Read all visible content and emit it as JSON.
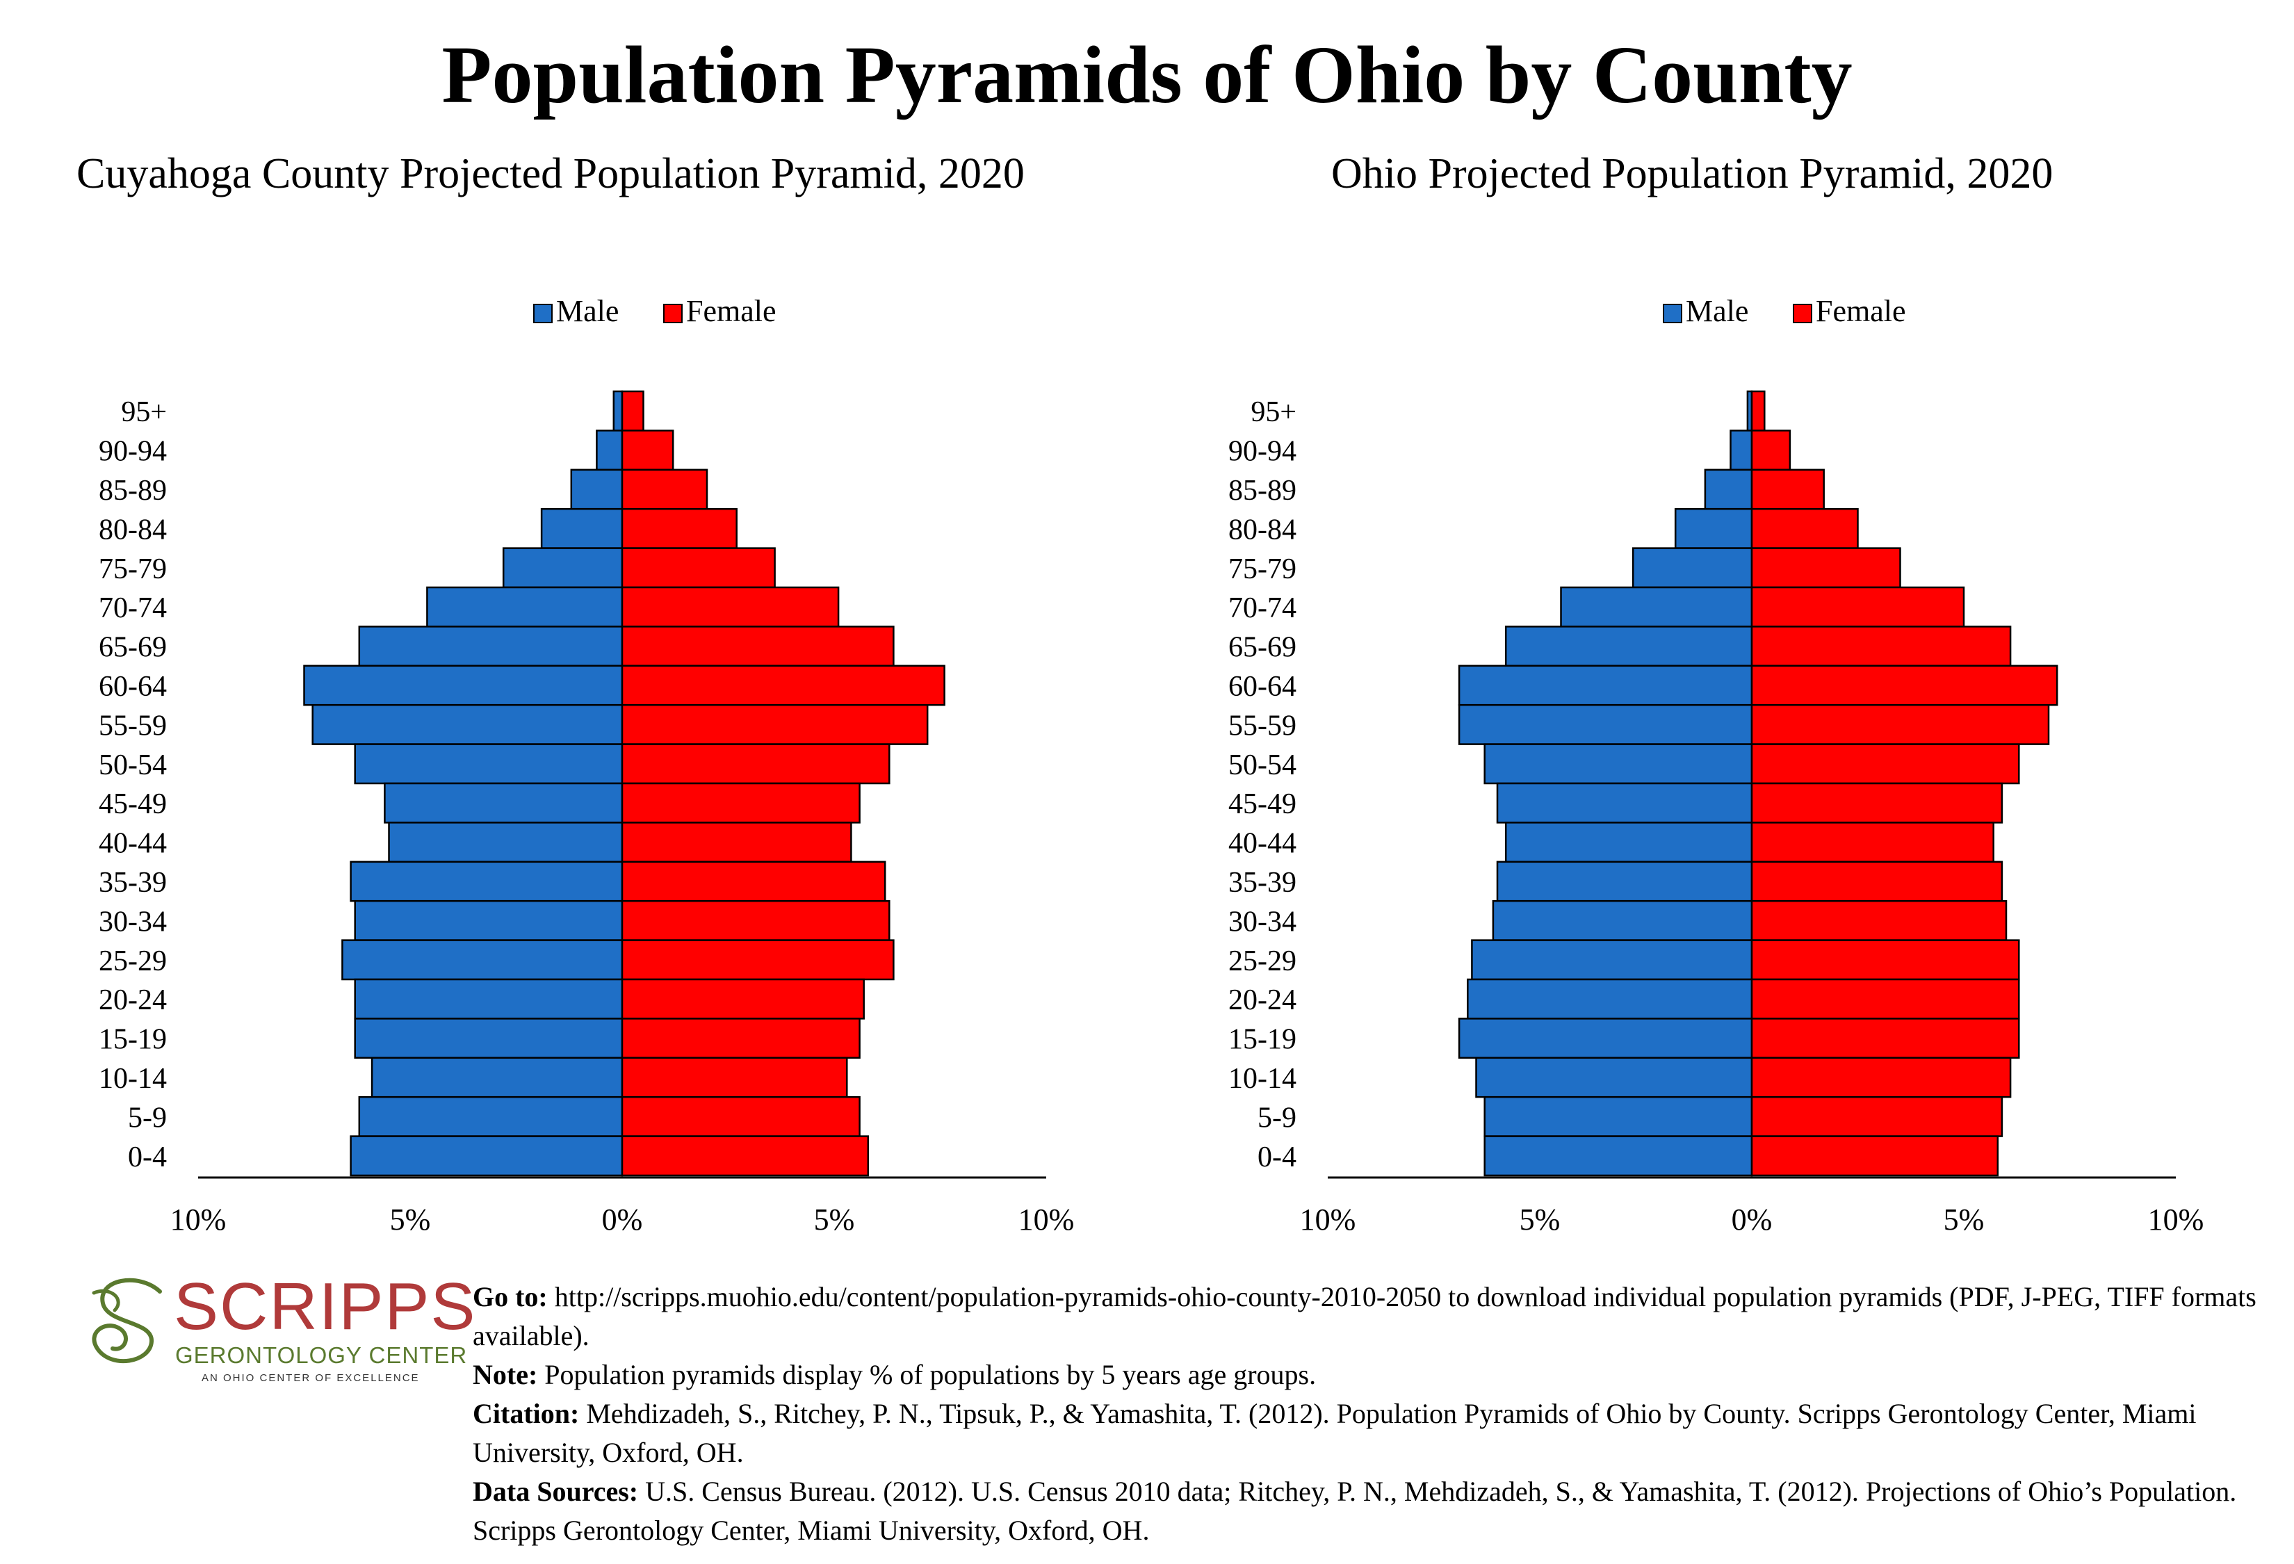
{
  "title": "Population Pyramids of Ohio by County",
  "colors": {
    "male": "#1f6fc6",
    "female": "#ff0000"
  },
  "chart_data": [
    {
      "type": "bar",
      "orientation": "horizontal-pyramid",
      "title": "Cuyahoga County Projected Population Pyramid, 2020",
      "categories": [
        "95+",
        "90-94",
        "85-89",
        "80-84",
        "75-79",
        "70-74",
        "65-69",
        "60-64",
        "55-59",
        "50-54",
        "45-49",
        "40-44",
        "35-39",
        "30-34",
        "25-29",
        "20-24",
        "15-19",
        "10-14",
        "5-9",
        "0-4"
      ],
      "series": [
        {
          "name": "Male",
          "values": [
            0.2,
            0.6,
            1.2,
            1.9,
            2.8,
            4.6,
            6.2,
            7.5,
            7.3,
            6.3,
            5.6,
            5.5,
            6.4,
            6.3,
            6.6,
            6.3,
            6.3,
            5.9,
            6.2,
            6.4
          ]
        },
        {
          "name": "Female",
          "values": [
            0.5,
            1.2,
            2.0,
            2.7,
            3.6,
            5.1,
            6.4,
            7.6,
            7.2,
            6.3,
            5.6,
            5.4,
            6.2,
            6.3,
            6.4,
            5.7,
            5.6,
            5.3,
            5.6,
            5.8
          ]
        }
      ],
      "xlim": [
        -10,
        10
      ],
      "xticks": [
        "10%",
        "5%",
        "0%",
        "5%",
        "10%"
      ],
      "legend": "top-center"
    },
    {
      "type": "bar",
      "orientation": "horizontal-pyramid",
      "title": "Ohio Projected Population Pyramid, 2020",
      "categories": [
        "95+",
        "90-94",
        "85-89",
        "80-84",
        "75-79",
        "70-74",
        "65-69",
        "60-64",
        "55-59",
        "50-54",
        "45-49",
        "40-44",
        "35-39",
        "30-34",
        "25-29",
        "20-24",
        "15-19",
        "10-14",
        "5-9",
        "0-4"
      ],
      "series": [
        {
          "name": "Male",
          "values": [
            0.1,
            0.5,
            1.1,
            1.8,
            2.8,
            4.5,
            5.8,
            6.9,
            6.9,
            6.3,
            6.0,
            5.8,
            6.0,
            6.1,
            6.6,
            6.7,
            6.9,
            6.5,
            6.3,
            6.3
          ]
        },
        {
          "name": "Female",
          "values": [
            0.3,
            0.9,
            1.7,
            2.5,
            3.5,
            5.0,
            6.1,
            7.2,
            7.0,
            6.3,
            5.9,
            5.7,
            5.9,
            6.0,
            6.3,
            6.3,
            6.3,
            6.1,
            5.9,
            5.8
          ]
        }
      ],
      "xlim": [
        -10,
        10
      ],
      "xticks": [
        "10%",
        "5%",
        "0%",
        "5%",
        "10%"
      ],
      "legend": "top-center"
    }
  ],
  "logo": {
    "word": "SCRIPPS",
    "subtitle": "GERONTOLOGY CENTER",
    "tagline": "AN OHIO CENTER OF EXCELLENCE"
  },
  "notes": {
    "goto_label": "Go to:",
    "goto_text": " http://scripps.muohio.edu/content/population-pyramids-ohio-county-2010-2050 to download individual population pyramids (PDF, J-PEG, TIFF formats available).",
    "note_label": "Note:",
    "note_text": " Population pyramids display % of populations by 5 years age groups.",
    "citation_label": "Citation:",
    "citation_text": " Mehdizadeh, S., Ritchey, P. N., Tipsuk, P., & Yamashita, T. (2012). Population Pyramids of Ohio by County. Scripps Gerontology Center, Miami University, Oxford, OH.",
    "sources_label": "Data Sources:",
    "sources_text": " U.S. Census Bureau. (2012). U.S. Census 2010 data; Ritchey, P. N., Mehdizadeh, S., & Yamashita, T. (2012). Projections of Ohio’s Population. Scripps Gerontology Center, Miami University, Oxford, OH."
  }
}
